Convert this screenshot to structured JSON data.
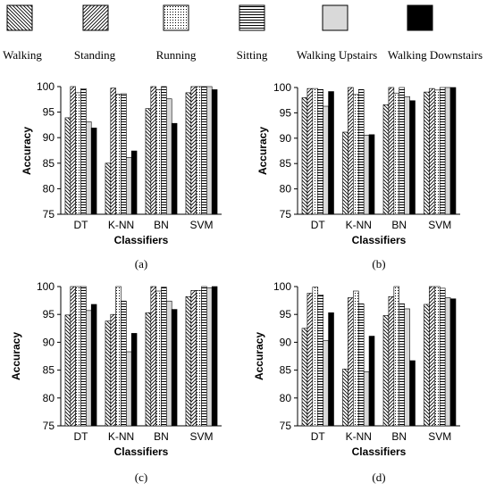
{
  "legend": {
    "items": [
      {
        "label": "Walking",
        "pattern": "diag-back",
        "color": "#000000"
      },
      {
        "label": "Standing",
        "pattern": "diag-fwd",
        "color": "#000000"
      },
      {
        "label": "Running",
        "pattern": "dots",
        "color": "#000000"
      },
      {
        "label": "Sitting",
        "pattern": "hlines",
        "color": "#000000"
      },
      {
        "label": "Walking Upstairs",
        "pattern": "solid-light",
        "color": "#d9d9d9"
      },
      {
        "label": "Walking Downstairs",
        "pattern": "solid-dark",
        "color": "#000000"
      }
    ]
  },
  "chart_data": [
    {
      "type": "bar",
      "panel_label": "(a)",
      "categories": [
        "DT",
        "K-NN",
        "BN",
        "SVM"
      ],
      "xlabel": "Classifiers",
      "ylabel": "Accuracy",
      "ylim": [
        75,
        100
      ],
      "yticks": [
        75,
        80,
        85,
        90,
        95,
        100
      ],
      "grid": false,
      "series": [
        {
          "name": "Walking",
          "values": [
            93.9,
            85.0,
            95.7,
            98.8
          ]
        },
        {
          "name": "Standing",
          "values": [
            100,
            99.7,
            100,
            100
          ]
        },
        {
          "name": "Running",
          "values": [
            98.8,
            98.5,
            99.4,
            100
          ]
        },
        {
          "name": "Sitting",
          "values": [
            99.6,
            98.6,
            100,
            100
          ]
        },
        {
          "name": "Walking Upstairs",
          "values": [
            93.1,
            86.1,
            97.6,
            100
          ]
        },
        {
          "name": "Walking Downstairs",
          "values": [
            91.9,
            87.4,
            92.8,
            99.4
          ]
        }
      ]
    },
    {
      "type": "bar",
      "panel_label": "(b)",
      "categories": [
        "DT",
        "K-NN",
        "BN",
        "SVM"
      ],
      "xlabel": "Classifiers",
      "ylabel": "Accuracy",
      "ylim": [
        75,
        100
      ],
      "yticks": [
        75,
        80,
        85,
        90,
        95,
        100
      ],
      "grid": false,
      "series": [
        {
          "name": "Walking",
          "values": [
            98.0,
            91.2,
            96.6,
            99.1
          ]
        },
        {
          "name": "Standing",
          "values": [
            99.8,
            100,
            100,
            99.8
          ]
        },
        {
          "name": "Running",
          "values": [
            99.8,
            98.6,
            98.9,
            99.5
          ]
        },
        {
          "name": "Sitting",
          "values": [
            99.6,
            99.6,
            100,
            100
          ]
        },
        {
          "name": "Walking Upstairs",
          "values": [
            96.3,
            90.6,
            98.2,
            100
          ]
        },
        {
          "name": "Walking Downstairs",
          "values": [
            99.2,
            90.7,
            97.4,
            100
          ]
        }
      ]
    },
    {
      "type": "bar",
      "panel_label": "(c)",
      "categories": [
        "DT",
        "K-NN",
        "BN",
        "SVM"
      ],
      "xlabel": "Classifiers",
      "ylabel": "Accuracy",
      "ylim": [
        75,
        100
      ],
      "yticks": [
        75,
        80,
        85,
        90,
        95,
        100
      ],
      "grid": false,
      "series": [
        {
          "name": "Walking",
          "values": [
            94.9,
            93.8,
            95.3,
            98.2
          ]
        },
        {
          "name": "Standing",
          "values": [
            100,
            95.0,
            100,
            99.3
          ]
        },
        {
          "name": "Running",
          "values": [
            100,
            100,
            99.2,
            99.3
          ]
        },
        {
          "name": "Sitting",
          "values": [
            100,
            97.4,
            99.9,
            100
          ]
        },
        {
          "name": "Walking Upstairs",
          "values": [
            95.7,
            88.3,
            97.4,
            99.8
          ]
        },
        {
          "name": "Walking Downstairs",
          "values": [
            96.8,
            91.6,
            95.9,
            100
          ]
        }
      ]
    },
    {
      "type": "bar",
      "panel_label": "(d)",
      "categories": [
        "DT",
        "K-NN",
        "BN",
        "SVM"
      ],
      "xlabel": "Classifiers",
      "ylabel": "Accuracy",
      "ylim": [
        75,
        100
      ],
      "yticks": [
        75,
        80,
        85,
        90,
        95,
        100
      ],
      "grid": false,
      "series": [
        {
          "name": "Walking",
          "values": [
            92.5,
            85.2,
            94.8,
            96.8
          ]
        },
        {
          "name": "Standing",
          "values": [
            98.8,
            98.0,
            98.2,
            100
          ]
        },
        {
          "name": "Running",
          "values": [
            99.9,
            99.2,
            100,
            100
          ]
        },
        {
          "name": "Sitting",
          "values": [
            98.5,
            96.9,
            96.9,
            99.7
          ]
        },
        {
          "name": "Walking Upstairs",
          "values": [
            90.3,
            84.7,
            96.0,
            98.0
          ]
        },
        {
          "name": "Walking Downstairs",
          "values": [
            95.3,
            91.1,
            86.7,
            97.8
          ]
        }
      ]
    }
  ]
}
